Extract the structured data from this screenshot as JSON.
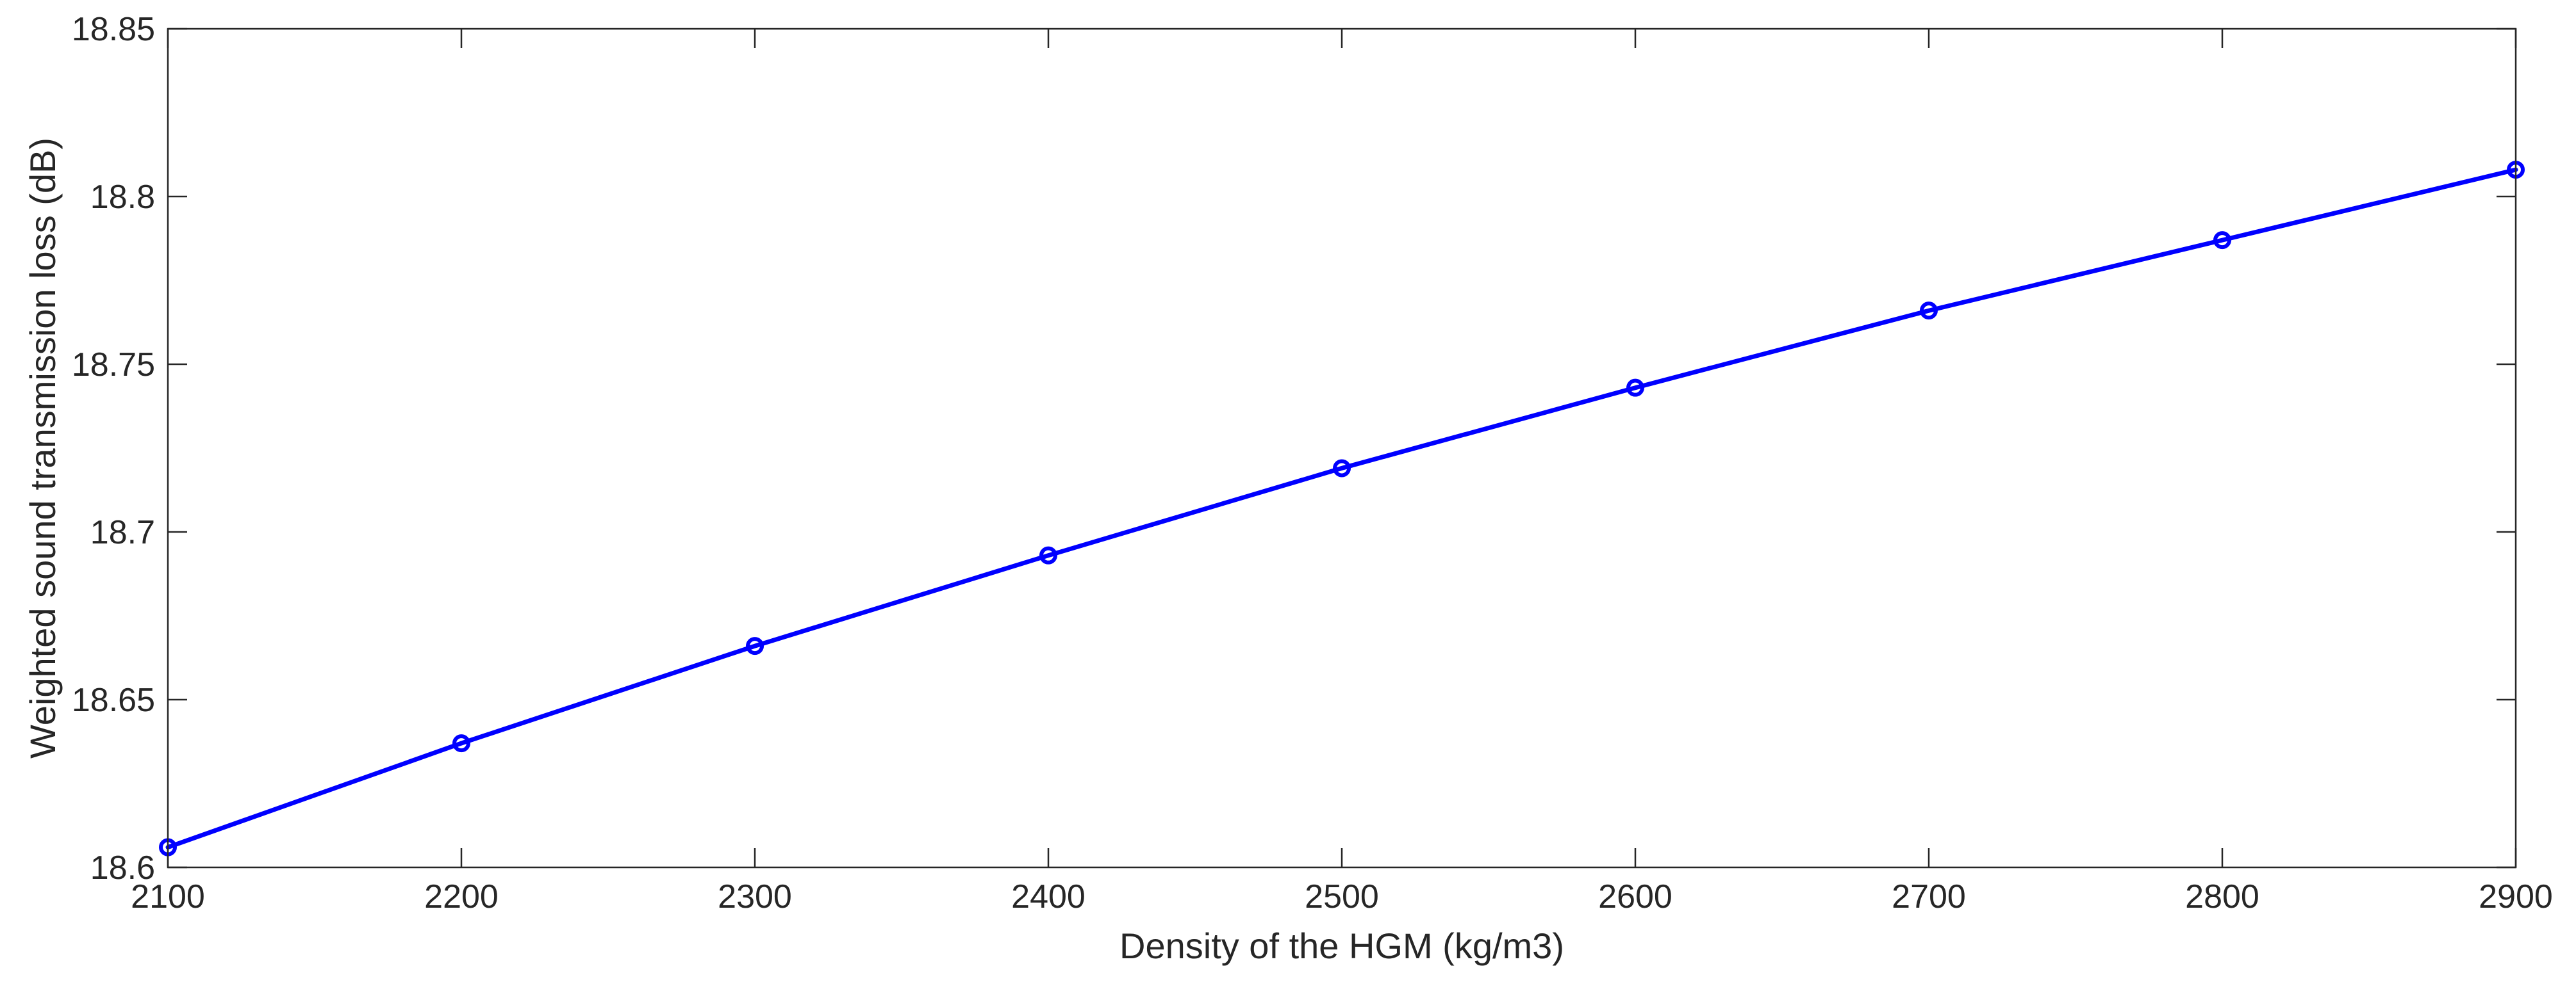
{
  "chart_data": {
    "type": "line",
    "title": "",
    "xlabel": "Density of the HGM (kg/m3)",
    "ylabel": "Weighted sound transmission loss (dB)",
    "xlim": [
      2100,
      2900
    ],
    "ylim": [
      18.6,
      18.85
    ],
    "xticks": [
      2100,
      2200,
      2300,
      2400,
      2500,
      2600,
      2700,
      2800,
      2900
    ],
    "yticks": [
      18.6,
      18.65,
      18.7,
      18.75,
      18.8,
      18.85
    ],
    "xtick_labels": [
      "2100",
      "2200",
      "2300",
      "2400",
      "2500",
      "2600",
      "2700",
      "2800",
      "2900"
    ],
    "ytick_labels": [
      "18.6",
      "18.65",
      "18.7",
      "18.75",
      "18.8",
      "18.85"
    ],
    "grid": false,
    "legend": "none",
    "series": [
      {
        "color": "#0000ff",
        "marker": "circle",
        "x": [
          2100,
          2200,
          2300,
          2400,
          2500,
          2600,
          2700,
          2800,
          2900
        ],
        "y": [
          18.606,
          18.637,
          18.666,
          18.693,
          18.719,
          18.743,
          18.766,
          18.787,
          18.808
        ]
      }
    ]
  }
}
